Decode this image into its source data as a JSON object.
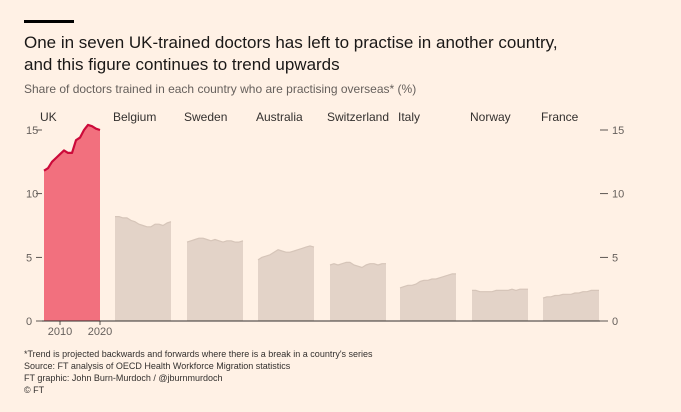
{
  "header": {
    "title_line1": "One in seven UK-trained doctors has left to practise in another country,",
    "title_line2": "and this figure continues to trend upwards",
    "subtitle": "Share of doctors trained in each country who are practising overseas* (%)"
  },
  "footer": {
    "note": "*Trend is projected backwards and forwards where there is a break in a country's series",
    "source": "Source: FT analysis of OECD Health Workforce Migration statistics",
    "credit": "FT graphic: John Burn-Murdoch / @jburnmurdoch",
    "copyright": "© FT"
  },
  "colors": {
    "highlight_fill": "#f2707e",
    "highlight_line": "#cc0a3a",
    "muted_fill": "#e3d3c8",
    "muted_line": "#d6c5b9",
    "axis": "#33302e",
    "tick_label": "#66605c",
    "background": "#fff1e5"
  },
  "chart_data": {
    "type": "area",
    "layout": "small-multiples",
    "ylim": [
      0,
      15
    ],
    "yticks": [
      "0",
      "5",
      "10",
      "15"
    ],
    "x_tick_labels": [
      "2010",
      "2020"
    ],
    "xlabel": "",
    "ylabel": "",
    "series": [
      {
        "name": "UK",
        "highlight": true,
        "x": [
          2006,
          2007,
          2008,
          2009,
          2010,
          2011,
          2012,
          2013,
          2014,
          2015,
          2016,
          2017,
          2018,
          2019,
          2020
        ],
        "values": [
          11.8,
          12.0,
          12.5,
          12.8,
          13.1,
          13.4,
          13.2,
          13.2,
          14.2,
          14.4,
          15.0,
          15.4,
          15.3,
          15.1,
          15.0
        ]
      },
      {
        "name": "Belgium",
        "highlight": false,
        "x": [
          2006,
          2007,
          2008,
          2009,
          2010,
          2011,
          2012,
          2013,
          2014,
          2015,
          2016,
          2017,
          2018,
          2019,
          2020
        ],
        "values": [
          8.2,
          8.2,
          8.1,
          8.1,
          7.9,
          7.8,
          7.6,
          7.5,
          7.4,
          7.4,
          7.6,
          7.6,
          7.5,
          7.7,
          7.8
        ]
      },
      {
        "name": "Sweden",
        "highlight": false,
        "x": [
          2006,
          2007,
          2008,
          2009,
          2010,
          2011,
          2012,
          2013,
          2014,
          2015,
          2016,
          2017,
          2018,
          2019,
          2020
        ],
        "values": [
          6.2,
          6.3,
          6.4,
          6.5,
          6.5,
          6.4,
          6.3,
          6.4,
          6.3,
          6.2,
          6.3,
          6.3,
          6.2,
          6.2,
          6.3
        ]
      },
      {
        "name": "Australia",
        "highlight": false,
        "x": [
          2006,
          2007,
          2008,
          2009,
          2010,
          2011,
          2012,
          2013,
          2014,
          2015,
          2016,
          2017,
          2018,
          2019,
          2020
        ],
        "values": [
          4.8,
          5.0,
          5.1,
          5.2,
          5.4,
          5.6,
          5.5,
          5.4,
          5.4,
          5.5,
          5.6,
          5.7,
          5.8,
          5.9,
          5.8
        ]
      },
      {
        "name": "Switzerland",
        "highlight": false,
        "x": [
          2006,
          2007,
          2008,
          2009,
          2010,
          2011,
          2012,
          2013,
          2014,
          2015,
          2016,
          2017,
          2018,
          2019,
          2020
        ],
        "values": [
          4.4,
          4.5,
          4.4,
          4.5,
          4.6,
          4.6,
          4.4,
          4.3,
          4.2,
          4.4,
          4.5,
          4.5,
          4.4,
          4.5,
          4.5
        ]
      },
      {
        "name": "Italy",
        "highlight": false,
        "x": [
          2006,
          2007,
          2008,
          2009,
          2010,
          2011,
          2012,
          2013,
          2014,
          2015,
          2016,
          2017,
          2018,
          2019,
          2020
        ],
        "values": [
          2.6,
          2.7,
          2.8,
          2.8,
          2.9,
          3.1,
          3.2,
          3.2,
          3.3,
          3.3,
          3.4,
          3.5,
          3.6,
          3.7,
          3.7
        ]
      },
      {
        "name": "Norway",
        "highlight": false,
        "x": [
          2006,
          2007,
          2008,
          2009,
          2010,
          2011,
          2012,
          2013,
          2014,
          2015,
          2016,
          2017,
          2018,
          2019,
          2020
        ],
        "values": [
          2.4,
          2.4,
          2.3,
          2.3,
          2.3,
          2.3,
          2.4,
          2.4,
          2.4,
          2.4,
          2.5,
          2.4,
          2.5,
          2.5,
          2.5
        ]
      },
      {
        "name": "France",
        "highlight": false,
        "x": [
          2006,
          2007,
          2008,
          2009,
          2010,
          2011,
          2012,
          2013,
          2014,
          2015,
          2016,
          2017,
          2018,
          2019,
          2020
        ],
        "values": [
          1.8,
          1.9,
          1.9,
          2.0,
          2.0,
          2.1,
          2.1,
          2.1,
          2.2,
          2.2,
          2.3,
          2.3,
          2.4,
          2.4,
          2.4
        ]
      }
    ]
  }
}
